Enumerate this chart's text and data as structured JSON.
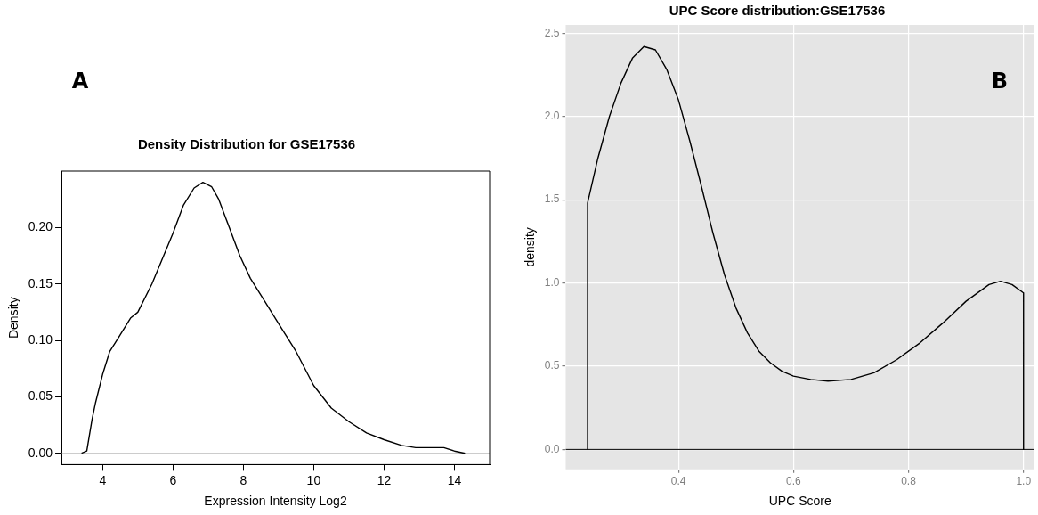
{
  "chart_data": [
    {
      "type": "line",
      "title": "Density Distribution for GSE17536",
      "xlabel": "Expression Intensity Log2",
      "ylabel": "Density",
      "annotations": [
        "A"
      ],
      "color": "#000000",
      "marker": "none",
      "grid": false,
      "xlim": [
        2.83,
        15.0
      ],
      "ylim": [
        -0.01,
        0.25
      ],
      "xticks": [
        4,
        6,
        8,
        10,
        12,
        14
      ],
      "yticks": [
        {
          "value": 0,
          "label": "0.00"
        },
        0.05,
        {
          "value": 0.1,
          "label": "0.10"
        },
        0.15,
        {
          "value": 0.2,
          "label": "0.20"
        }
      ],
      "ref_lines": [
        {
          "axis": "y",
          "value": 0,
          "color": "#bebebe"
        }
      ],
      "x": [
        3.4,
        3.55,
        3.7,
        3.8,
        4.0,
        4.2,
        4.4,
        4.8,
        5.0,
        5.4,
        5.8,
        6.0,
        6.3,
        6.6,
        6.85,
        7.1,
        7.3,
        7.6,
        7.9,
        8.2,
        8.6,
        9.0,
        9.5,
        10,
        10.5,
        11,
        11.5,
        12,
        12.5,
        12.9,
        13.5,
        13.7,
        14,
        14.3
      ],
      "values": [
        0,
        0.002,
        0.03,
        0.045,
        0.07,
        0.09,
        0.1,
        0.12,
        0.125,
        0.15,
        0.18,
        0.195,
        0.22,
        0.235,
        0.24,
        0.236,
        0.225,
        0.2,
        0.175,
        0.155,
        0.135,
        0.115,
        0.09,
        0.06,
        0.04,
        0.028,
        0.018,
        0.012,
        0.007,
        0.005,
        0.005,
        0.005,
        0.002,
        0
      ]
    },
    {
      "type": "line",
      "title": "UPC Score distribution:GSE17536",
      "xlabel": "UPC Score",
      "ylabel": "density",
      "annotations": [
        "B"
      ],
      "color": "#000000",
      "marker": "none",
      "grid": true,
      "xlim": [
        0.204,
        1.019
      ],
      "ylim": [
        -0.12,
        2.55
      ],
      "ref_lines": [
        {
          "axis": "y",
          "value": 0,
          "color": "#000000"
        }
      ],
      "xticks": [
        0.4,
        0.6,
        0.8,
        {
          "value": 1,
          "label": "1.0"
        }
      ],
      "yticks": [
        {
          "value": 0,
          "label": "0.0"
        },
        0.5,
        {
          "value": 1,
          "label": "1.0"
        },
        1.5,
        {
          "value": 2,
          "label": "2.0"
        },
        2.5
      ],
      "x": [
        0.242,
        0.242,
        0.26,
        0.28,
        0.3,
        0.32,
        0.34,
        0.36,
        0.38,
        0.4,
        0.42,
        0.44,
        0.46,
        0.48,
        0.5,
        0.52,
        0.54,
        0.56,
        0.58,
        0.6,
        0.63,
        0.66,
        0.7,
        0.74,
        0.78,
        0.82,
        0.86,
        0.9,
        0.94,
        0.96,
        0.98,
        1.0,
        1.0
      ],
      "values": [
        0,
        1.48,
        1.75,
        2.0,
        2.2,
        2.35,
        2.42,
        2.4,
        2.28,
        2.1,
        1.85,
        1.58,
        1.3,
        1.05,
        0.85,
        0.7,
        0.59,
        0.52,
        0.47,
        0.44,
        0.42,
        0.41,
        0.42,
        0.46,
        0.54,
        0.64,
        0.76,
        0.89,
        0.99,
        1.01,
        0.99,
        0.94,
        0
      ]
    }
  ]
}
